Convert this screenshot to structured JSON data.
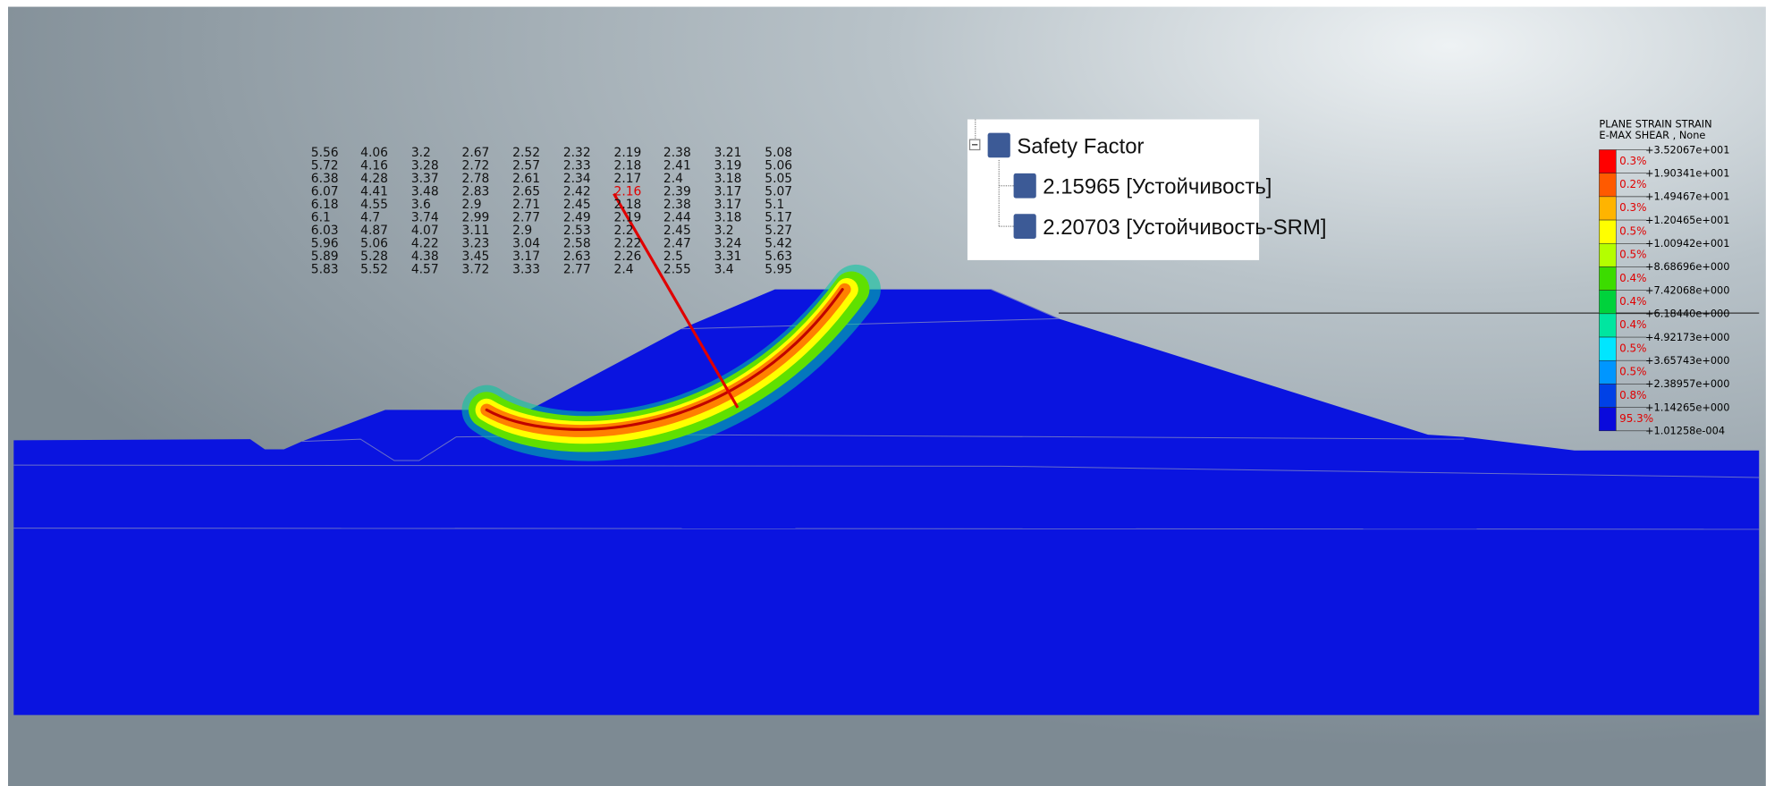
{
  "safety_factor_grid": [
    [
      5.56,
      4.06,
      3.2,
      2.67,
      2.52,
      2.32,
      2.19,
      2.38,
      3.21,
      5.08
    ],
    [
      5.72,
      4.16,
      3.28,
      2.72,
      2.57,
      2.33,
      2.18,
      2.41,
      3.19,
      5.06
    ],
    [
      6.38,
      4.28,
      3.37,
      2.78,
      2.61,
      2.34,
      2.17,
      2.4,
      3.18,
      5.05
    ],
    [
      6.07,
      4.41,
      3.48,
      2.83,
      2.65,
      2.42,
      2.16,
      2.39,
      3.17,
      5.07
    ],
    [
      6.18,
      4.55,
      3.6,
      2.9,
      2.71,
      2.45,
      2.18,
      2.38,
      3.17,
      5.1
    ],
    [
      6.1,
      4.7,
      3.74,
      2.99,
      2.77,
      2.49,
      2.19,
      2.44,
      3.18,
      5.17
    ],
    [
      6.03,
      4.87,
      4.07,
      3.11,
      2.9,
      2.53,
      2.2,
      2.45,
      3.2,
      5.27
    ],
    [
      5.96,
      5.06,
      4.22,
      3.23,
      3.04,
      2.58,
      2.22,
      2.47,
      3.24,
      5.42
    ],
    [
      5.89,
      5.28,
      4.38,
      3.45,
      3.17,
      2.63,
      2.26,
      2.5,
      3.31,
      5.63
    ],
    [
      5.83,
      5.52,
      4.57,
      3.72,
      3.33,
      2.77,
      2.4,
      2.55,
      3.4,
      5.95
    ]
  ],
  "tree": {
    "title": "Safety Factor",
    "items": [
      "2.15965 [Устойчивость]",
      "2.20703 [Устойчивость-SRM]"
    ]
  },
  "legend": {
    "title": [
      "PLANE STRAIN STRAIN",
      "E-MAX SHEAR , None"
    ],
    "levels": [
      "+3.52067e+001",
      "+1.90341e+001",
      "+1.49467e+001",
      "+1.20465e+001",
      "+1.00942e+001",
      "+8.68696e+000",
      "+7.42068e+000",
      "+6.18440e+000",
      "+4.92173e+000",
      "+3.65743e+000",
      "+2.38957e+000",
      "+1.14265e+000",
      "+1.01258e-004"
    ],
    "percents": [
      "0.3%",
      "0.2%",
      "0.3%",
      "0.5%",
      "0.5%",
      "0.4%",
      "0.4%",
      "0.4%",
      "0.5%",
      "0.5%",
      "0.8%",
      "95.3%"
    ],
    "colors": [
      "#ff0000",
      "#ff5a00",
      "#ffb400",
      "#ffff00",
      "#b4ff00",
      "#3cdc00",
      "#00d23c",
      "#00e6a0",
      "#00e6ff",
      "#0096ff",
      "#0041e6",
      "#0a0adc"
    ]
  }
}
